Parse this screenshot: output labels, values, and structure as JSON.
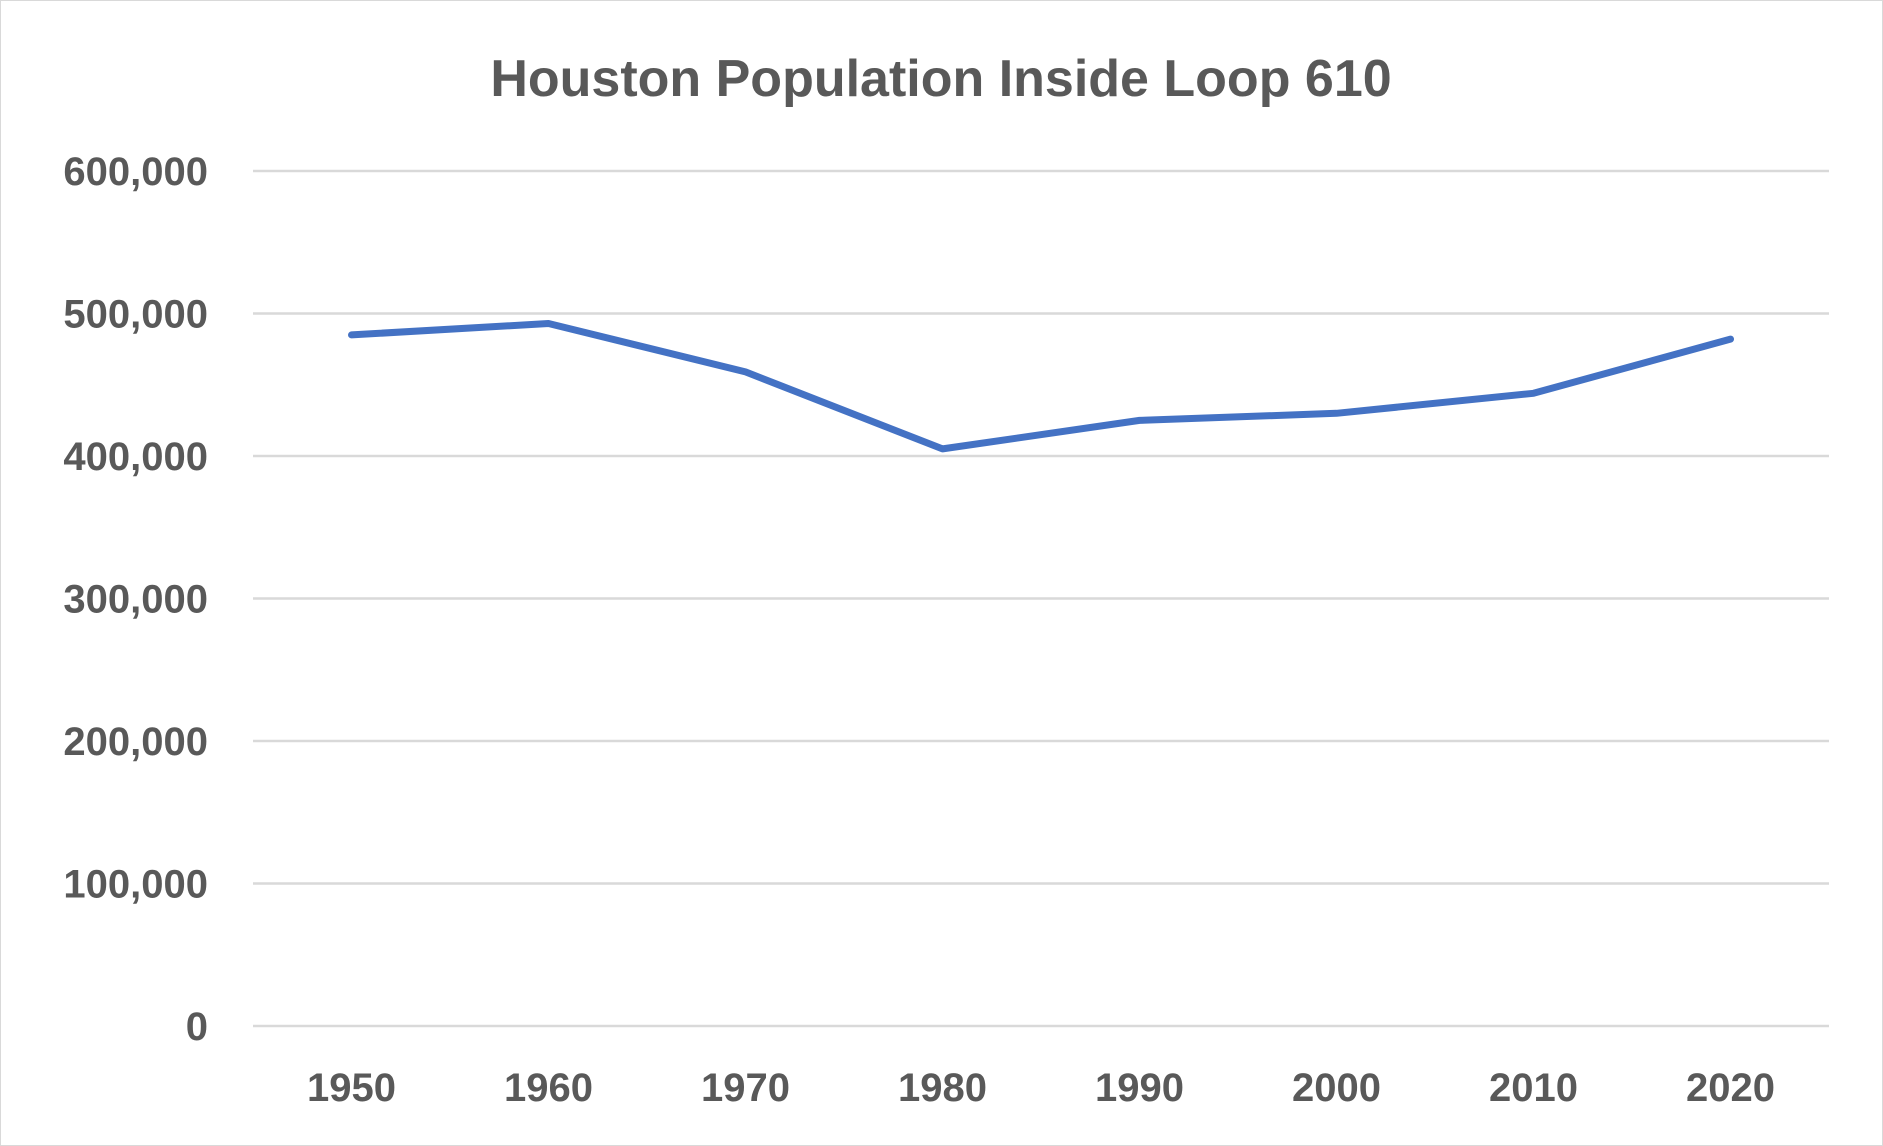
{
  "chart_data": {
    "type": "line",
    "title": "Houston Population Inside Loop 610",
    "xlabel": "",
    "ylabel": "",
    "categories": [
      "1950",
      "1960",
      "1970",
      "1980",
      "1990",
      "2000",
      "2010",
      "2020"
    ],
    "series": [
      {
        "name": "Population",
        "values": [
          485000,
          493000,
          459000,
          405000,
          425000,
          430000,
          444000,
          482000
        ],
        "color": "#4472C4"
      }
    ],
    "ylim": [
      0,
      600000
    ],
    "yticks": [
      0,
      100000,
      200000,
      300000,
      400000,
      500000,
      600000
    ],
    "ytick_labels": [
      "0",
      "100,000",
      "200,000",
      "300,000",
      "400,000",
      "500,000",
      "600,000"
    ],
    "grid": true,
    "legend": "none"
  }
}
